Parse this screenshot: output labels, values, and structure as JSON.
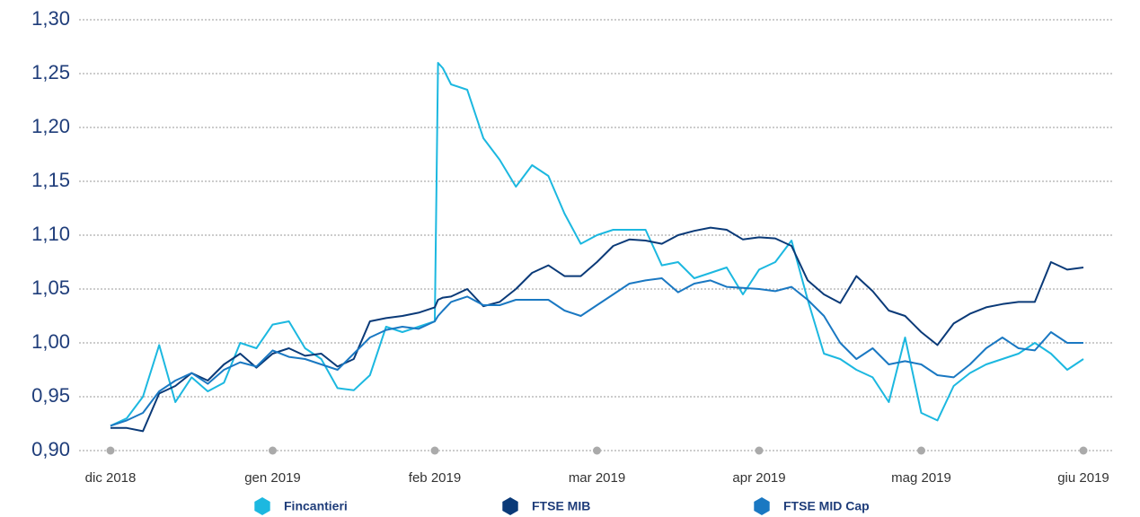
{
  "chart_data": {
    "type": "line",
    "x": [
      0,
      0.1,
      0.2,
      0.3,
      0.4,
      0.5,
      0.6,
      0.7,
      0.8,
      0.9,
      1.0,
      1.1,
      1.2,
      1.3,
      1.4,
      1.5,
      1.6,
      1.7,
      1.8,
      1.9,
      2.0,
      2.02,
      2.05,
      2.1,
      2.2,
      2.3,
      2.4,
      2.5,
      2.6,
      2.7,
      2.8,
      2.9,
      3.0,
      3.1,
      3.2,
      3.3,
      3.4,
      3.5,
      3.6,
      3.7,
      3.8,
      3.9,
      4.0,
      4.1,
      4.2,
      4.3,
      4.4,
      4.5,
      4.6,
      4.7,
      4.8,
      4.9,
      5.0,
      5.1,
      5.2,
      5.3,
      5.4,
      5.5,
      5.6,
      5.7,
      5.8,
      5.9,
      6.0
    ],
    "series": [
      {
        "name": "Fincantieri",
        "color": "#1cb8e0",
        "values": [
          0.923,
          0.93,
          0.95,
          0.998,
          0.945,
          0.968,
          0.955,
          0.963,
          1.0,
          0.995,
          1.017,
          1.02,
          0.995,
          0.985,
          0.958,
          0.956,
          0.97,
          1.015,
          1.01,
          1.015,
          1.02,
          1.26,
          1.255,
          1.24,
          1.235,
          1.19,
          1.17,
          1.145,
          1.165,
          1.155,
          1.12,
          1.092,
          1.1,
          1.105,
          1.105,
          1.105,
          1.072,
          1.075,
          1.06,
          1.065,
          1.07,
          1.045,
          1.068,
          1.075,
          1.095,
          1.04,
          0.99,
          0.985,
          0.975,
          0.968,
          0.945,
          1.005,
          0.935,
          0.928,
          0.96,
          0.972,
          0.98,
          0.985,
          0.99,
          1.0,
          0.99,
          0.975,
          0.985
        ]
      },
      {
        "name": "FTSE MIB",
        "color": "#0a3a78",
        "values": [
          0.921,
          0.921,
          0.918,
          0.953,
          0.96,
          0.972,
          0.965,
          0.98,
          0.99,
          0.977,
          0.99,
          0.995,
          0.988,
          0.99,
          0.978,
          0.985,
          1.02,
          1.023,
          1.025,
          1.028,
          1.033,
          1.04,
          1.042,
          1.043,
          1.05,
          1.034,
          1.038,
          1.05,
          1.065,
          1.072,
          1.062,
          1.062,
          1.075,
          1.09,
          1.096,
          1.095,
          1.092,
          1.1,
          1.104,
          1.107,
          1.105,
          1.096,
          1.098,
          1.097,
          1.09,
          1.058,
          1.045,
          1.037,
          1.062,
          1.048,
          1.03,
          1.025,
          1.01,
          0.998,
          1.018,
          1.027,
          1.033,
          1.036,
          1.038,
          1.038,
          1.075,
          1.068,
          1.07
        ]
      },
      {
        "name": "FTSE MID Cap",
        "color": "#1a78c2",
        "values": [
          0.923,
          0.928,
          0.935,
          0.955,
          0.965,
          0.972,
          0.962,
          0.975,
          0.982,
          0.978,
          0.993,
          0.987,
          0.985,
          0.98,
          0.975,
          0.99,
          1.005,
          1.012,
          1.015,
          1.013,
          1.02,
          1.025,
          1.03,
          1.038,
          1.043,
          1.035,
          1.035,
          1.04,
          1.04,
          1.04,
          1.03,
          1.025,
          1.035,
          1.045,
          1.055,
          1.058,
          1.06,
          1.047,
          1.055,
          1.058,
          1.052,
          1.051,
          1.05,
          1.048,
          1.052,
          1.04,
          1.025,
          1.0,
          0.985,
          0.995,
          0.98,
          0.983,
          0.98,
          0.97,
          0.968,
          0.98,
          0.995,
          1.005,
          0.995,
          0.993,
          1.01,
          1.0,
          1.0
        ]
      }
    ],
    "xlim": [
      0,
      6
    ],
    "xticks": [
      {
        "value": 0,
        "label": "dic 2018"
      },
      {
        "value": 1,
        "label": "gen 2019"
      },
      {
        "value": 2,
        "label": "feb 2019"
      },
      {
        "value": 3,
        "label": "mar 2019"
      },
      {
        "value": 4,
        "label": "apr 2019"
      },
      {
        "value": 5,
        "label": "mag 2019"
      },
      {
        "value": 6,
        "label": "giu 2019"
      }
    ],
    "ylim": [
      0.9,
      1.3
    ],
    "yticks": [
      {
        "value": 0.9,
        "label": "0,90"
      },
      {
        "value": 0.95,
        "label": "0,95"
      },
      {
        "value": 1.0,
        "label": "1,00"
      },
      {
        "value": 1.05,
        "label": "1,05"
      },
      {
        "value": 1.1,
        "label": "1,10"
      },
      {
        "value": 1.15,
        "label": "1,15"
      },
      {
        "value": 1.2,
        "label": "1,20"
      },
      {
        "value": 1.25,
        "label": "1,25"
      },
      {
        "value": 1.3,
        "label": "1,30"
      }
    ],
    "grid": true,
    "legend": "bottom"
  }
}
